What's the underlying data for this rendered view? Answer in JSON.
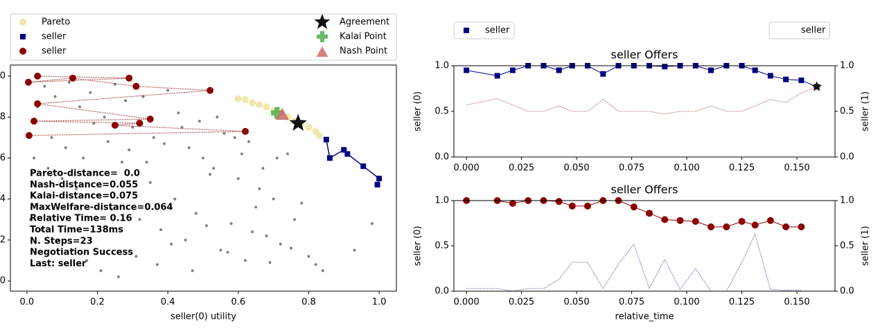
{
  "chart_data": [
    {
      "type": "scatter",
      "xlabel": "seller(0) utility",
      "outcomes": {
        "color": "#808080",
        "x": [
          0.05,
          0.08,
          0.12,
          0.15,
          0.18,
          0.22,
          0.25,
          0.28,
          0.3,
          0.33,
          0.36,
          0.4,
          0.43,
          0.46,
          0.5,
          0.53,
          0.56,
          0.6,
          0.63,
          0.66,
          0.7,
          0.74,
          0.78,
          0.02,
          0.06,
          0.1,
          0.14,
          0.2,
          0.24,
          0.27,
          0.32,
          0.35,
          0.38,
          0.42,
          0.45,
          0.48,
          0.52,
          0.55,
          0.58,
          0.62,
          0.65,
          0.68,
          0.72,
          0.76,
          0.8,
          0.84,
          0.01,
          0.04,
          0.09,
          0.13,
          0.17,
          0.21,
          0.26,
          0.31,
          0.37,
          0.41,
          0.47,
          0.51,
          0.57,
          0.64,
          0.69,
          0.75,
          0.82,
          0.03,
          0.07,
          0.11,
          0.16,
          0.19,
          0.23,
          0.29,
          0.34,
          0.39,
          0.44,
          0.49,
          0.54,
          0.59,
          0.61,
          0.67,
          0.71,
          0.93,
          0.98
        ],
        "y": [
          0.95,
          0.9,
          0.97,
          0.85,
          0.92,
          0.8,
          0.96,
          0.88,
          0.75,
          0.9,
          0.7,
          0.93,
          0.82,
          0.65,
          0.6,
          0.55,
          0.72,
          0.5,
          0.68,
          0.45,
          0.4,
          0.62,
          0.38,
          0.6,
          0.55,
          0.5,
          0.45,
          0.42,
          0.35,
          0.58,
          0.3,
          0.48,
          0.25,
          0.4,
          0.2,
          0.33,
          0.52,
          0.15,
          0.28,
          0.1,
          0.36,
          0.22,
          0.18,
          0.3,
          0.12,
          0.05,
          0.3,
          0.25,
          0.2,
          0.15,
          0.1,
          0.05,
          0.02,
          0.12,
          0.08,
          0.18,
          0.05,
          0.27,
          0.14,
          0.24,
          0.09,
          0.16,
          0.08,
          0.85,
          0.7,
          0.65,
          0.6,
          0.77,
          0.68,
          0.64,
          0.58,
          0.67,
          0.75,
          0.78,
          0.8,
          0.7,
          0.62,
          0.55,
          0.6,
          0.15,
          0.28
        ]
      },
      "series": [
        {
          "name": "Pareto",
          "color": "#eee8aa",
          "marker": "circle",
          "x": [
            0.6,
            0.62,
            0.64,
            0.66,
            0.68,
            0.7,
            0.72,
            0.74,
            0.76,
            0.78,
            0.8,
            0.82,
            0.83
          ],
          "values": [
            0.89,
            0.885,
            0.87,
            0.86,
            0.85,
            0.83,
            0.82,
            0.8,
            0.78,
            0.77,
            0.75,
            0.73,
            0.71
          ]
        },
        {
          "name": "seller",
          "color": "#000080",
          "marker": "square",
          "line": "solid",
          "x": [
            0.85,
            0.86,
            0.9,
            0.91,
            0.955,
            1.0,
            0.995
          ],
          "values": [
            0.69,
            0.6,
            0.64,
            0.62,
            0.56,
            0.5,
            0.47
          ]
        },
        {
          "name": "seller",
          "color": "#8b0000",
          "marker": "circle",
          "line": "dotted",
          "x": [
            0.03,
            0.29,
            0.004,
            0.13,
            0.31,
            0.52,
            0.03,
            0.35,
            0.02,
            0.32,
            0.25,
            0.62,
            0.006
          ],
          "values": [
            1.0,
            0.99,
            0.97,
            0.99,
            0.95,
            0.93,
            0.865,
            0.79,
            0.78,
            0.77,
            0.76,
            0.73,
            0.71
          ]
        }
      ],
      "agreement": {
        "name": "Agreement",
        "color": "#111111",
        "x": 0.77,
        "y": 0.77
      },
      "kalai": {
        "name": "Kalai Point",
        "color": "#4caf50",
        "x": 0.71,
        "y": 0.82
      },
      "nash": {
        "name": "Nash Point",
        "color": "#cd6b6b",
        "x": 0.725,
        "y": 0.81
      },
      "annotations": [
        "Pareto-distance=  0.0",
        "Nash-distance=0.055",
        "Kalai-distance=0.075",
        "MaxWelfare-distance=0.064",
        "Relative Time= 0.16",
        "Total Time=138ms",
        "N. Steps=23",
        "Negotiation Success",
        "Last: seller"
      ],
      "xlim": [
        -0.047,
        1.049
      ],
      "xticks": [
        {
          "value": 0,
          "label": "0.0"
        },
        {
          "value": 0.2,
          "label": "0.2"
        },
        {
          "value": 0.4,
          "label": "0.4"
        },
        {
          "value": 0.6,
          "label": "0.6"
        },
        {
          "value": 0.8,
          "label": "0.8"
        },
        {
          "value": 1,
          "label": "1.0"
        }
      ],
      "ylim": [
        -0.05,
        1.054
      ],
      "yticks": [
        {
          "value": 0,
          "label": "0.0"
        },
        {
          "value": 0.2,
          "label": "0.2"
        },
        {
          "value": 0.4,
          "label": "0.4"
        },
        {
          "value": 0.6,
          "label": "0.6"
        },
        {
          "value": 0.8,
          "label": "0.8"
        },
        {
          "value": 1,
          "label": "1.0"
        }
      ]
    },
    {
      "type": "line",
      "title": "seller Offers",
      "ylabel": "seller (0)",
      "y2label": "seller (1)",
      "legend": true,
      "x": [
        0,
        0.014,
        0.021,
        0.028,
        0.035,
        0.042,
        0.048,
        0.055,
        0.062,
        0.069,
        0.076,
        0.083,
        0.09,
        0.097,
        0.104,
        0.111,
        0.118,
        0.125,
        0.131,
        0.138,
        0.145,
        0.152,
        0.159
      ],
      "series": [
        {
          "name": "seller",
          "color": "#000080",
          "marker": "square",
          "values": [
            0.95,
            0.89,
            0.95,
            1.0,
            1.0,
            0.95,
            1.0,
            1.0,
            0.91,
            1.0,
            1.0,
            1.0,
            0.99,
            1.0,
            1.0,
            0.95,
            1.0,
            1.0,
            0.95,
            0.89,
            0.85,
            0.84,
            0.77
          ]
        },
        {
          "name": "seller",
          "color": "#8b0000",
          "axis": "y2",
          "line": "dotted",
          "values": [
            0.57,
            0.64,
            0.57,
            0.5,
            0.5,
            0.56,
            0.5,
            0.5,
            0.63,
            0.5,
            0.5,
            0.5,
            0.47,
            0.5,
            0.5,
            0.56,
            0.5,
            0.5,
            0.56,
            0.63,
            0.6,
            0.7,
            0.77
          ]
        }
      ],
      "agreement": {
        "x": 0.159,
        "y": 0.77
      },
      "xlim": [
        -0.0057,
        0.1673
      ],
      "xticks": [
        {
          "value": 0,
          "label": "0.000"
        },
        {
          "value": 0.025,
          "label": "0.025"
        },
        {
          "value": 0.05,
          "label": "0.050"
        },
        {
          "value": 0.075,
          "label": "0.075"
        },
        {
          "value": 0.1,
          "label": "0.100"
        },
        {
          "value": 0.125,
          "label": "0.125"
        },
        {
          "value": 0.15,
          "label": "0.150"
        }
      ],
      "ylim": [
        0,
        1
      ],
      "yticks": [
        {
          "value": 0,
          "label": "0.0"
        },
        {
          "value": 0.5,
          "label": "0.5"
        },
        {
          "value": 1,
          "label": "1.0"
        }
      ],
      "y2lim": [
        0,
        1
      ],
      "y2ticks": [
        {
          "value": 0,
          "label": "0.0"
        },
        {
          "value": 0.5,
          "label": "0.5"
        },
        {
          "value": 1,
          "label": "1.0"
        }
      ]
    },
    {
      "type": "line",
      "title": "seller Offers",
      "ylabel": "seller (0)",
      "y2label": "seller (1)",
      "xlabel": "relative_time",
      "legend": false,
      "x": [
        0,
        0.014,
        0.021,
        0.028,
        0.035,
        0.042,
        0.048,
        0.055,
        0.062,
        0.069,
        0.076,
        0.083,
        0.09,
        0.097,
        0.104,
        0.111,
        0.118,
        0.125,
        0.131,
        0.138,
        0.145,
        0.152
      ],
      "series": [
        {
          "name": "seller",
          "color": "#8b0000",
          "marker": "circle",
          "values": [
            1.0,
            1.0,
            0.97,
            1.0,
            1.0,
            0.99,
            0.94,
            0.94,
            1.0,
            1.0,
            0.93,
            0.86,
            0.79,
            0.78,
            0.77,
            0.71,
            0.71,
            0.77,
            0.73,
            0.78,
            0.71,
            0.71
          ]
        },
        {
          "name": "seller",
          "color": "#000080",
          "axis": "y2",
          "line": "dotted",
          "values": [
            0.03,
            0.03,
            0.0,
            0.03,
            0.03,
            0.13,
            0.32,
            0.32,
            0.03,
            0.3,
            0.52,
            0.03,
            0.35,
            0.02,
            0.25,
            0.0,
            0.0,
            0.32,
            0.63,
            0.02,
            0.01,
            0.01
          ]
        }
      ],
      "xlim": [
        -0.0057,
        0.1673
      ],
      "xticks": [
        {
          "value": 0,
          "label": "0.000"
        },
        {
          "value": 0.025,
          "label": "0.025"
        },
        {
          "value": 0.05,
          "label": "0.050"
        },
        {
          "value": 0.075,
          "label": "0.075"
        },
        {
          "value": 0.1,
          "label": "0.100"
        },
        {
          "value": 0.125,
          "label": "0.125"
        },
        {
          "value": 0.15,
          "label": "0.150"
        }
      ],
      "ylim": [
        0,
        1
      ],
      "yticks": [
        {
          "value": 0,
          "label": "0.0"
        },
        {
          "value": 0.5,
          "label": "0.5"
        },
        {
          "value": 1,
          "label": "1.0"
        }
      ],
      "y2lim": [
        0,
        1
      ],
      "y2ticks": [
        {
          "value": 0,
          "label": "0.0"
        },
        {
          "value": 0.5,
          "label": "0.5"
        },
        {
          "value": 1,
          "label": "1.0"
        }
      ]
    }
  ]
}
